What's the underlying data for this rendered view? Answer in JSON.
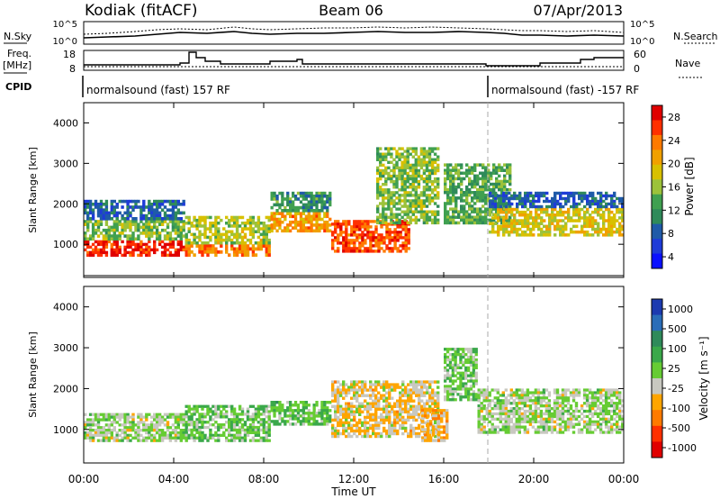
{
  "header": {
    "station": "Kodiak (fitACF)",
    "beam": "Beam 06",
    "date": "07/Apr/2013"
  },
  "noise_panel": {
    "left_label": "N.Sky",
    "right_label": "N.Search",
    "ticks_left": [
      "10^5",
      "10^0"
    ],
    "ticks_right": [
      "10^5",
      "10^0"
    ]
  },
  "freq_panel": {
    "left_label_line1": "Freq.",
    "left_label_line2": "[MHz]",
    "ticks_left": [
      "18",
      "8"
    ],
    "right_label": "Nave",
    "ticks_right": [
      "60",
      "0"
    ]
  },
  "cpid_panel": {
    "label": "CPID",
    "segments": [
      {
        "text": "normalsound (fast) 157 RF",
        "start_hour": 0
      },
      {
        "text": "normalsound (fast) -157 RF",
        "start_hour": 18
      }
    ]
  },
  "power_colorbar": {
    "label": "Power [dB]",
    "ticks": [
      "28",
      "24",
      "20",
      "16",
      "12",
      "8",
      "4"
    ],
    "colors": [
      "#e00000",
      "#ff3000",
      "#ff7a00",
      "#f0a000",
      "#d8c000",
      "#9cc23a",
      "#40a050",
      "#2f8a5a",
      "#1f5aa8",
      "#1e3bd8",
      "#0a10ff"
    ]
  },
  "velocity_colorbar": {
    "label": "Velocity [m s⁻¹]",
    "ticks": [
      "1000",
      "500",
      "100",
      "25",
      "-25",
      "-100",
      "-500",
      "-1000"
    ],
    "colors": [
      "#1c3ab0",
      "#2a6db8",
      "#2f8a5a",
      "#3aa84a",
      "#66cc33",
      "#c8c8c0",
      "#ffa500",
      "#ff7a00",
      "#ff3000",
      "#e00000"
    ]
  },
  "range_axis": {
    "label": "Slant Range [km]",
    "ticks": [
      "4000",
      "3000",
      "2000",
      "1000"
    ]
  },
  "time_axis": {
    "label": "Time UT",
    "ticks": [
      "00:00",
      "04:00",
      "08:00",
      "12:00",
      "16:00",
      "20:00",
      "00:00"
    ]
  },
  "chart_data": [
    {
      "type": "heatmap",
      "title": "",
      "xlabel": "Time UT",
      "ylabel": "Slant Range [km]",
      "xlim_hours": [
        0,
        24
      ],
      "ylim_km": [
        180,
        4500
      ],
      "colorbar_label": "Power [dB]",
      "colorbar_range": [
        0,
        30
      ],
      "scatter_bands": [
        {
          "t0": 0.0,
          "t1": 4.5,
          "r0": 700,
          "r1": 1100,
          "value": 28
        },
        {
          "t0": 0.0,
          "t1": 4.5,
          "r0": 1100,
          "r1": 1600,
          "value": 14
        },
        {
          "t0": 0.0,
          "t1": 4.5,
          "r0": 1600,
          "r1": 2100,
          "value": 6
        },
        {
          "t0": 4.5,
          "t1": 8.3,
          "r0": 700,
          "r1": 1000,
          "value": 24
        },
        {
          "t0": 4.5,
          "t1": 8.3,
          "r0": 1000,
          "r1": 1700,
          "value": 16
        },
        {
          "t0": 8.3,
          "t1": 11.0,
          "r0": 1300,
          "r1": 1800,
          "value": 22
        },
        {
          "t0": 8.3,
          "t1": 11.0,
          "r0": 1800,
          "r1": 2300,
          "value": 10
        },
        {
          "t0": 11.0,
          "t1": 14.5,
          "r0": 800,
          "r1": 1600,
          "value": 26
        },
        {
          "t0": 13.0,
          "t1": 15.8,
          "r0": 1500,
          "r1": 3400,
          "value": 14
        },
        {
          "t0": 16.0,
          "t1": 19.0,
          "r0": 1500,
          "r1": 3000,
          "value": 12
        },
        {
          "t0": 18.0,
          "t1": 24.0,
          "r0": 1200,
          "r1": 1900,
          "value": 18
        },
        {
          "t0": 18.0,
          "t1": 24.0,
          "r0": 1900,
          "r1": 2300,
          "value": 6
        }
      ]
    },
    {
      "type": "heatmap",
      "title": "",
      "xlabel": "Time UT",
      "ylabel": "Slant Range [km]",
      "xlim_hours": [
        0,
        24
      ],
      "ylim_km": [
        180,
        4500
      ],
      "colorbar_label": "Velocity [m s⁻¹]",
      "colorbar_range": [
        -1000,
        1000
      ],
      "scatter_bands": [
        {
          "t0": 0.0,
          "t1": 4.5,
          "r0": 700,
          "r1": 1400,
          "value": 0
        },
        {
          "t0": 4.5,
          "t1": 8.3,
          "r0": 700,
          "r1": 1600,
          "value": 150
        },
        {
          "t0": 8.3,
          "t1": 11.0,
          "r0": 1100,
          "r1": 1700,
          "value": 200
        },
        {
          "t0": 11.0,
          "t1": 15.8,
          "r0": 800,
          "r1": 2200,
          "value": -200
        },
        {
          "t0": 15.0,
          "t1": 16.2,
          "r0": 700,
          "r1": 1500,
          "value": -300
        },
        {
          "t0": 16.0,
          "t1": 17.5,
          "r0": 1700,
          "r1": 3000,
          "value": 120
        },
        {
          "t0": 17.5,
          "t1": 24.0,
          "r0": 900,
          "r1": 2000,
          "value": 0
        }
      ]
    }
  ]
}
